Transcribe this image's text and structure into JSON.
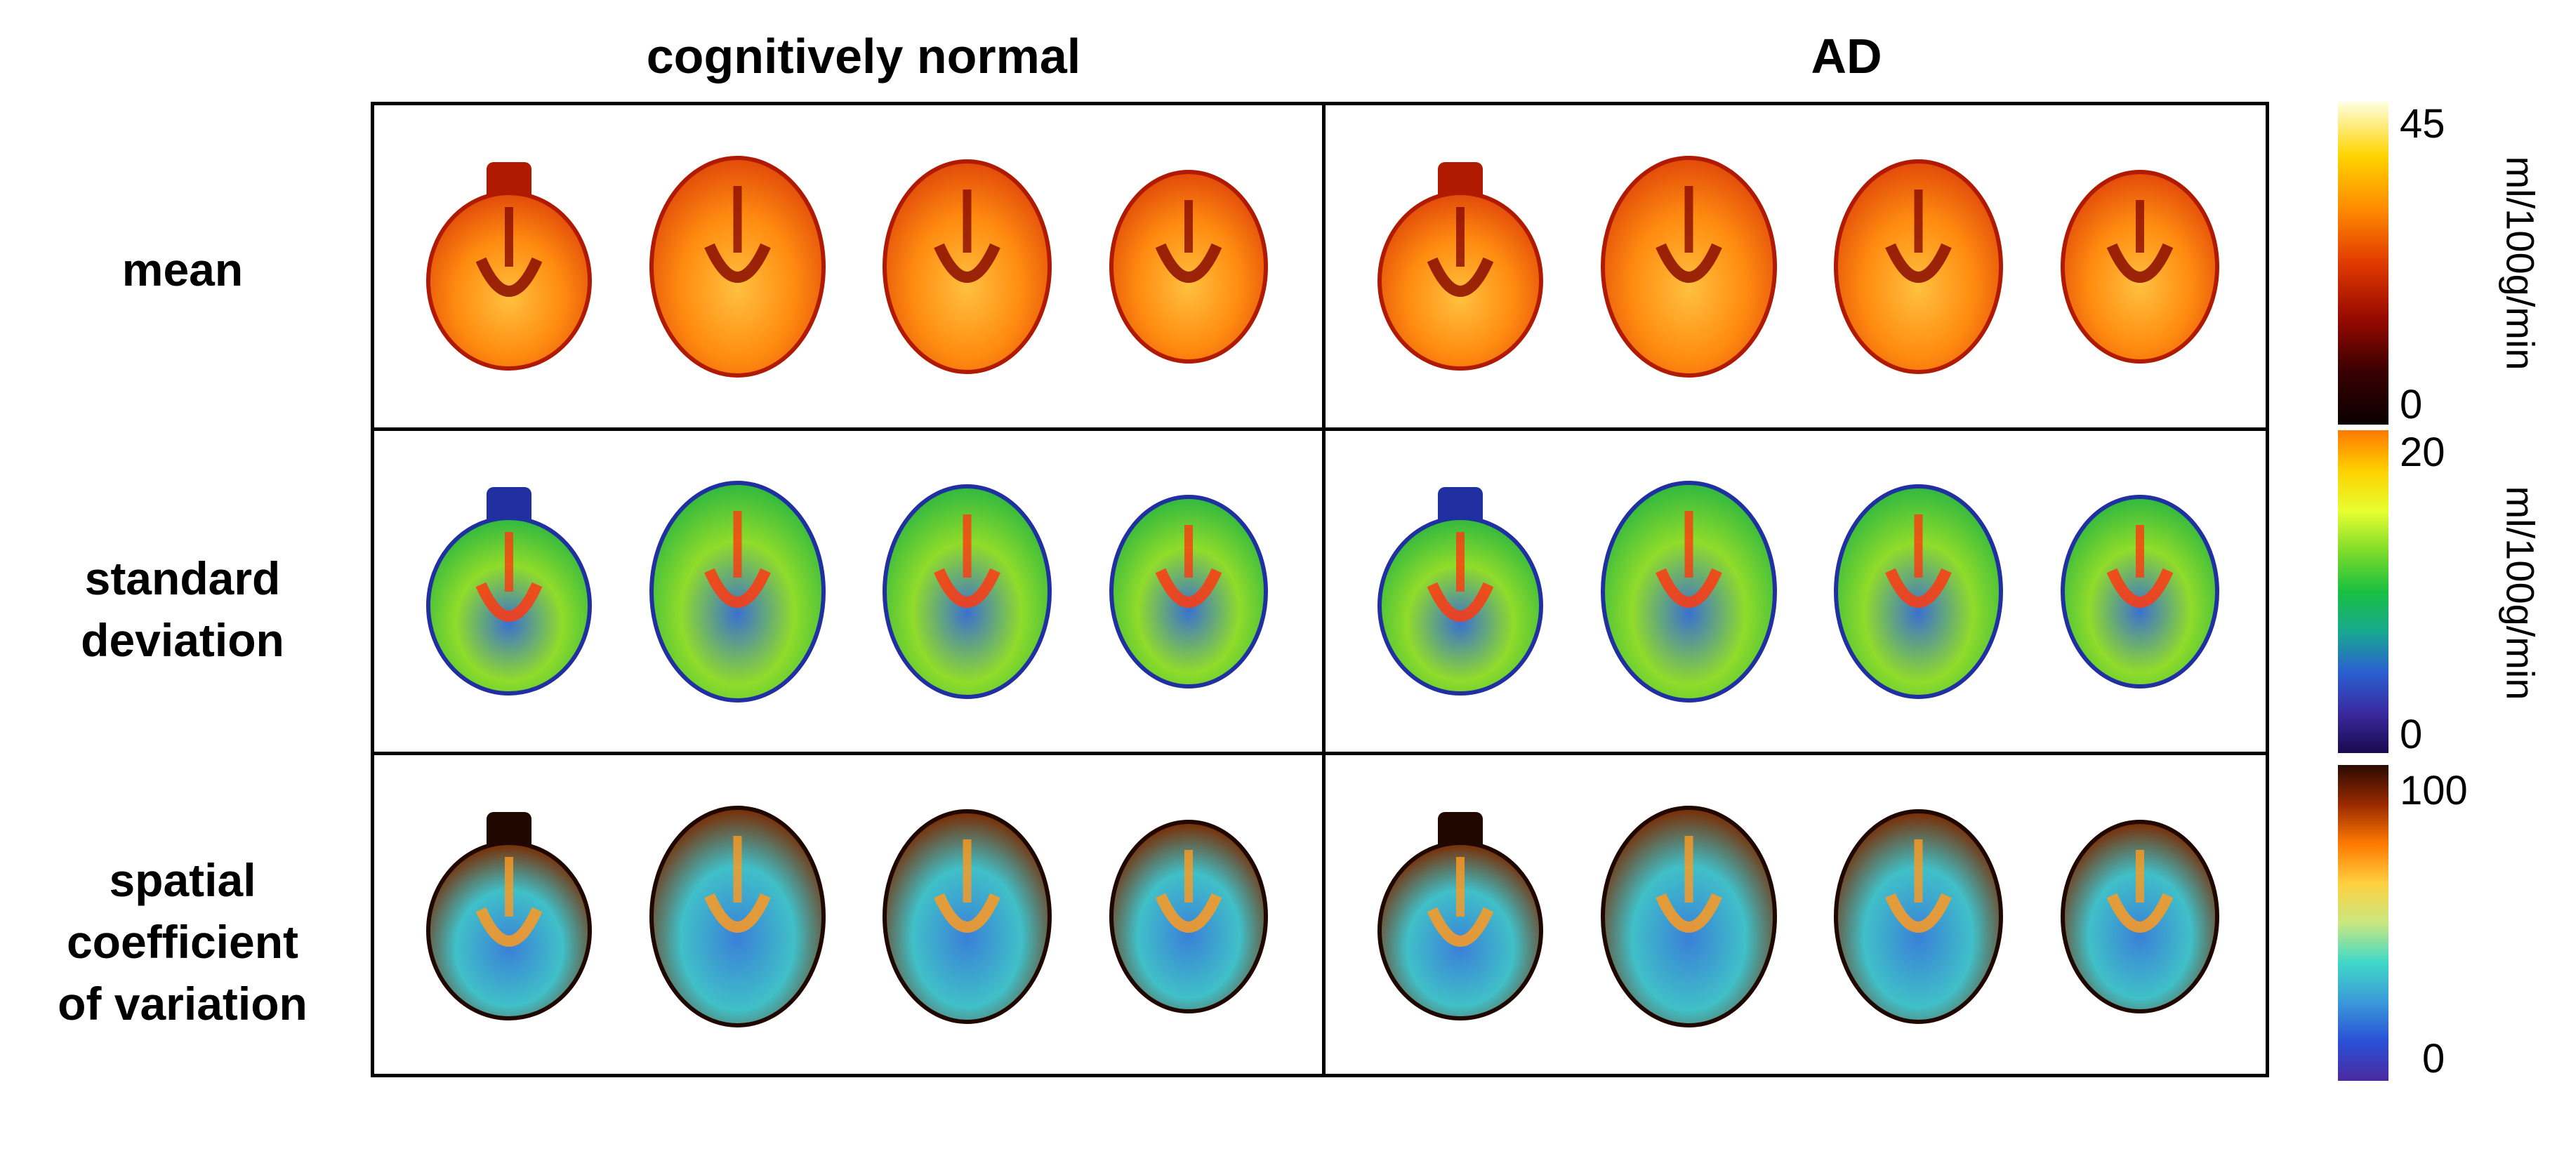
{
  "columns": [
    {
      "title": "cognitively normal",
      "group": "CN"
    },
    {
      "title": "AD",
      "group": "AD"
    }
  ],
  "rows": [
    {
      "label_lines": [
        "mean"
      ],
      "metric": "mean"
    },
    {
      "label_lines": [
        "standard",
        "deviation"
      ],
      "metric": "sd"
    },
    {
      "label_lines": [
        "spatial",
        "coefficient",
        "of variation"
      ],
      "metric": "scov"
    }
  ],
  "colorbars": [
    {
      "max_label": "45",
      "min_label": "0",
      "unit": "ml/100g/mi\nn",
      "colors": [
        "#ffffe0",
        "#ffd400",
        "#ff8a00",
        "#e03a00",
        "#9a0a00",
        "#3a0000",
        "#0a0000"
      ]
    },
    {
      "max_label": "20",
      "min_label": "0",
      "unit": "ml/100g/mi\nn",
      "colors": [
        "#ff7a00",
        "#ffd000",
        "#e8ff30",
        "#7ddc2a",
        "#18c040",
        "#18a890",
        "#2a60d0",
        "#3a2aa0",
        "#1a0a50"
      ]
    },
    {
      "max_label": "100",
      "min_label": "0",
      "unit": "",
      "colors": [
        "#2a0a00",
        "#9a2a00",
        "#ff7a00",
        "#ffd040",
        "#c8e880",
        "#40d8c8",
        "#3a9ad8",
        "#2a50d8",
        "#4a2aa0"
      ]
    }
  ]
}
